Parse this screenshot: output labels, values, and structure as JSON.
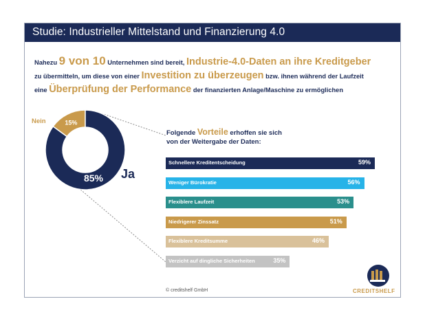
{
  "header": {
    "title": "Studie: Industrieller Mittelstand und Finanzierung 4.0"
  },
  "intro": {
    "line1": [
      "Nahezu ",
      "9 von 10",
      " Unternehmen sind bereit, ",
      "Industrie-4.0-Daten an ihre Kreditgeber"
    ],
    "line2": [
      "zu übermitteln, um diese von einer ",
      "Investition zu überzeugen",
      " bzw. ihnen während der Laufzeit"
    ],
    "line3": [
      "eine ",
      "Überprüfung der Performance",
      " der finanzierten Anlage/Maschine zu ermöglichen"
    ]
  },
  "donut": {
    "nein_label": "Nein",
    "ja_label": "Ja",
    "colors": {
      "ja": "#1b2a57",
      "nein": "#c99a4b"
    }
  },
  "vorteile": {
    "head_prefix": "Folgende ",
    "head_highlight": "Vorteile",
    "head_suffix": " erhoffen sie sich",
    "head_line2": "von der Weitergabe der Daten:"
  },
  "chart_data": [
    {
      "type": "pie",
      "categories": [
        "Ja",
        "Nein"
      ],
      "values": [
        85,
        15
      ],
      "value_labels": [
        "85%",
        "15%"
      ]
    },
    {
      "type": "bar",
      "orientation": "horizontal",
      "categories": [
        "Schnellere Kreditentscheidung",
        "Weniger Bürokratie",
        "Flexiblere Laufzeit",
        "Niedrigerer Zinssatz",
        "Flexiblere Kreditsumme",
        "Verzicht auf dingliche Sicherheiten"
      ],
      "values": [
        59,
        56,
        53,
        51,
        46,
        35
      ],
      "value_labels": [
        "59%",
        "56%",
        "53%",
        "51%",
        "46%",
        "35%"
      ],
      "colors": [
        "#1b2a57",
        "#27b3e8",
        "#2a8f8c",
        "#c99a4b",
        "#d9c19a",
        "#c3c3c3"
      ],
      "xlim": [
        0,
        59
      ]
    }
  ],
  "footer": {
    "copyright": "© creditshelf GmbH",
    "logo_text": "CREDITSHELF",
    "logo_icon": "creditshelf-logo-icon"
  }
}
